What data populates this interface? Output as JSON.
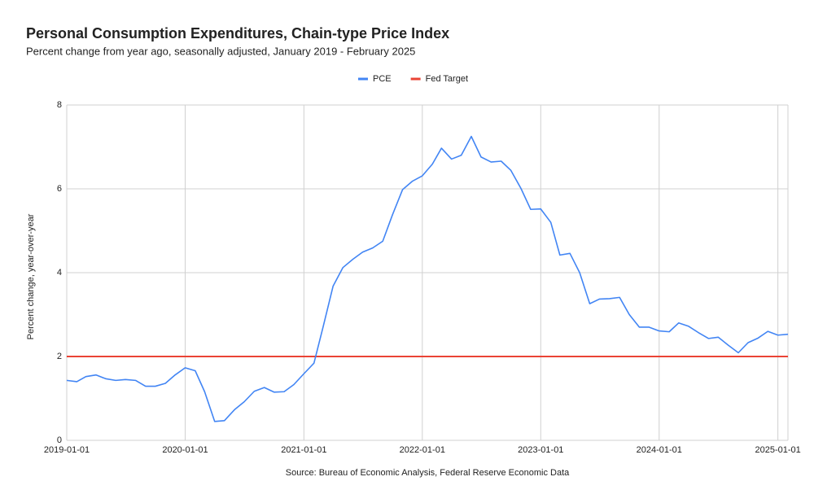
{
  "chart_data": {
    "type": "line",
    "title": "Personal Consumption Expenditures, Chain-type Price Index",
    "subtitle": "Percent change from year ago, seasonally adjusted, January 2019 - February 2025",
    "y_label": "Percent change, year-over-year",
    "source": "Source: Bureau of Economic Analysis, Federal Reserve Economic Data",
    "x": [
      "2019-01-01",
      "2019-02-01",
      "2019-03-01",
      "2019-04-01",
      "2019-05-01",
      "2019-06-01",
      "2019-07-01",
      "2019-08-01",
      "2019-09-01",
      "2019-10-01",
      "2019-11-01",
      "2019-12-01",
      "2020-01-01",
      "2020-02-01",
      "2020-03-01",
      "2020-04-01",
      "2020-05-01",
      "2020-06-01",
      "2020-07-01",
      "2020-08-01",
      "2020-09-01",
      "2020-10-01",
      "2020-11-01",
      "2020-12-01",
      "2021-01-01",
      "2021-02-01",
      "2021-03-01",
      "2021-04-01",
      "2021-05-01",
      "2021-06-01",
      "2021-07-01",
      "2021-08-01",
      "2021-09-01",
      "2021-10-01",
      "2021-11-01",
      "2021-12-01",
      "2022-01-01",
      "2022-02-01",
      "2022-03-01",
      "2022-04-01",
      "2022-05-01",
      "2022-06-01",
      "2022-07-01",
      "2022-08-01",
      "2022-09-01",
      "2022-10-01",
      "2022-11-01",
      "2022-12-01",
      "2023-01-01",
      "2023-02-01",
      "2023-03-01",
      "2023-04-01",
      "2023-05-01",
      "2023-06-01",
      "2023-07-01",
      "2023-08-01",
      "2023-09-01",
      "2023-10-01",
      "2023-11-01",
      "2023-12-01",
      "2024-01-01",
      "2024-02-01",
      "2024-03-01",
      "2024-04-01",
      "2024-05-01",
      "2024-06-01",
      "2024-07-01",
      "2024-08-01",
      "2024-09-01",
      "2024-10-01",
      "2024-11-01",
      "2024-12-01",
      "2025-01-01",
      "2025-02-01"
    ],
    "series": [
      {
        "name": "PCE",
        "color": "#4285f4",
        "values": [
          1.43,
          1.4,
          1.52,
          1.56,
          1.47,
          1.43,
          1.45,
          1.43,
          1.29,
          1.29,
          1.36,
          1.56,
          1.73,
          1.66,
          1.16,
          0.45,
          0.47,
          0.73,
          0.92,
          1.17,
          1.26,
          1.15,
          1.16,
          1.33,
          1.59,
          1.84,
          2.7,
          3.68,
          4.12,
          4.32,
          4.49,
          4.59,
          4.75,
          5.38,
          5.98,
          6.18,
          6.31,
          6.59,
          6.97,
          6.71,
          6.8,
          7.25,
          6.76,
          6.64,
          6.66,
          6.44,
          6.01,
          5.51,
          5.52,
          5.2,
          4.42,
          4.46,
          4.0,
          3.26,
          3.37,
          3.38,
          3.41,
          3.0,
          2.7,
          2.7,
          2.61,
          2.59,
          2.8,
          2.72,
          2.57,
          2.43,
          2.46,
          2.27,
          2.09,
          2.33,
          2.44,
          2.6,
          2.51,
          2.53
        ]
      },
      {
        "name": "Fed Target",
        "color": "#ea4335",
        "values": [
          2,
          2,
          2,
          2,
          2,
          2,
          2,
          2,
          2,
          2,
          2,
          2,
          2,
          2,
          2,
          2,
          2,
          2,
          2,
          2,
          2,
          2,
          2,
          2,
          2,
          2,
          2,
          2,
          2,
          2,
          2,
          2,
          2,
          2,
          2,
          2,
          2,
          2,
          2,
          2,
          2,
          2,
          2,
          2,
          2,
          2,
          2,
          2,
          2,
          2,
          2,
          2,
          2,
          2,
          2,
          2,
          2,
          2,
          2,
          2,
          2,
          2,
          2,
          2,
          2,
          2,
          2,
          2,
          2,
          2,
          2,
          2,
          2,
          2
        ]
      }
    ],
    "xlim": [
      "2019-01-01",
      "2025-02-01"
    ],
    "xticks": [
      "2019-01-01",
      "2020-01-01",
      "2021-01-01",
      "2022-01-01",
      "2023-01-01",
      "2024-01-01",
      "2025-01-01"
    ],
    "ylim": [
      0,
      8
    ],
    "yticks": [
      0,
      2,
      4,
      6,
      8
    ],
    "grid": true,
    "legend": "top"
  }
}
